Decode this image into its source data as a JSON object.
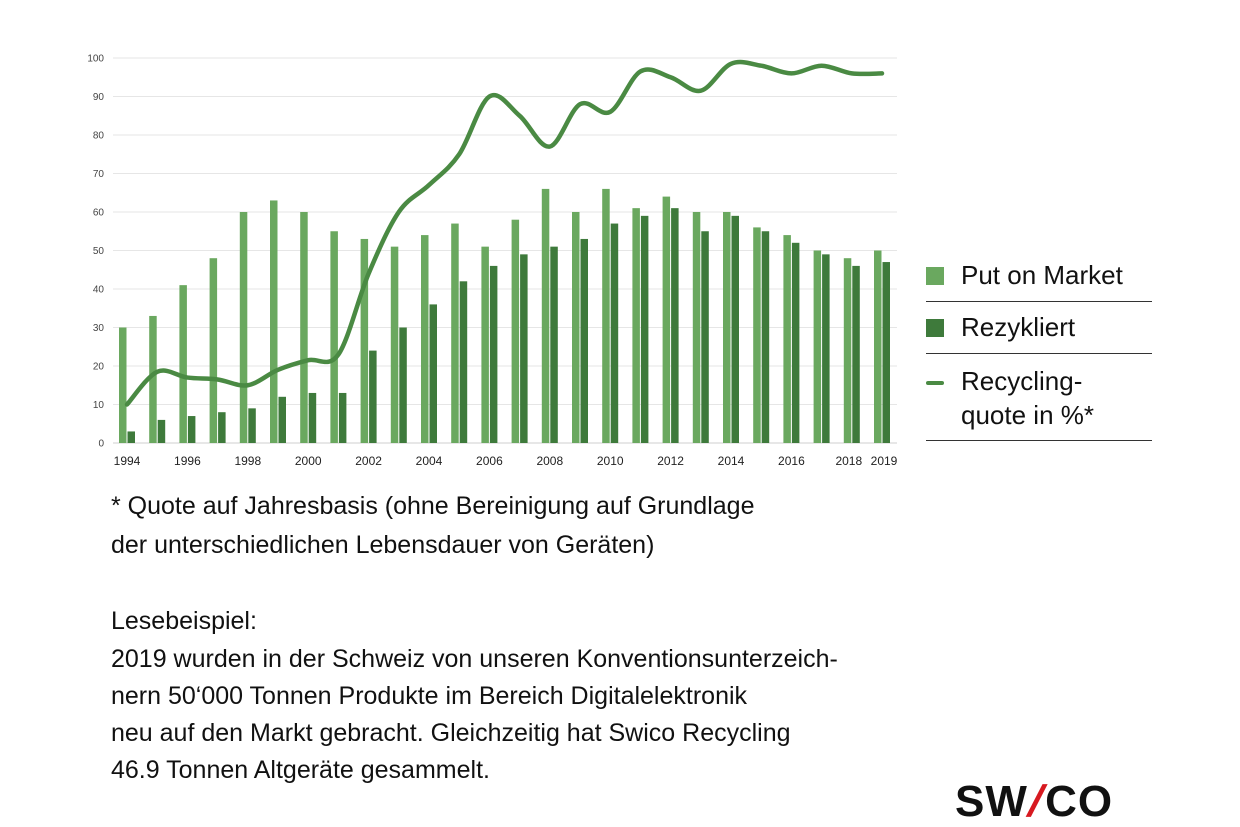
{
  "chart_data": {
    "type": "bar",
    "x": [
      1994,
      1995,
      1996,
      1997,
      1998,
      1999,
      2000,
      2001,
      2002,
      2003,
      2004,
      2005,
      2006,
      2007,
      2008,
      2009,
      2010,
      2011,
      2012,
      2013,
      2014,
      2015,
      2016,
      2017,
      2018,
      2019
    ],
    "x_tick_labels": [
      "1994",
      "1996",
      "1998",
      "2000",
      "2002",
      "2004",
      "2006",
      "2008",
      "2010",
      "2012",
      "2014",
      "2016",
      "2018",
      "2019"
    ],
    "y_ticks": [
      "0",
      "10",
      "20",
      "30",
      "40",
      "50",
      "60",
      "70",
      "80",
      "90",
      "100"
    ],
    "ylim": [
      0,
      100
    ],
    "grid": "horizontal",
    "series": [
      {
        "name": "Put on Market",
        "type": "bar",
        "color": "#6aa85f",
        "values": [
          30,
          33,
          41,
          48,
          60,
          63,
          60,
          55,
          53,
          51,
          54,
          57,
          51,
          58,
          66,
          60,
          66,
          61,
          64,
          60,
          60,
          56,
          54,
          50,
          48,
          50
        ]
      },
      {
        "name": "Rezykliert",
        "type": "bar",
        "color": "#3e7a3b",
        "values": [
          3,
          6,
          7,
          8,
          9,
          12,
          13,
          13,
          24,
          30,
          36,
          42,
          46,
          49,
          51,
          53,
          57,
          59,
          61,
          55,
          59,
          55,
          52,
          49,
          46,
          47
        ]
      },
      {
        "name": "Recycling-quote in %*",
        "type": "line",
        "color": "#4a8a43",
        "values": [
          10,
          18.5,
          17,
          16.5,
          15,
          19,
          21.5,
          23,
          44,
          60,
          67,
          75,
          90,
          85,
          77,
          88,
          86,
          96.5,
          95,
          91.5,
          98.5,
          98,
          96,
          98,
          96,
          96
        ]
      }
    ],
    "legend_position": "right"
  },
  "legend": {
    "put_on_market": "Put on Market",
    "rezykliert": "Rezykliert",
    "quote_line1": "Recycling-",
    "quote_line2": "quote  in %*"
  },
  "footnote": {
    "line1": "* Quote auf Jahresbasis (ohne Bereinigung auf Grundlage",
    "line2": "der unterschiedlichen Lebensdauer von Geräten)"
  },
  "example": {
    "title": "Lesebeispiel:",
    "lines": [
      "2019 wurden in der Schweiz von unseren Konventionsunterzeich-",
      "nern 50‘000 Tonnen Produkte im Bereich Digitalelektronik",
      "neu auf den Markt gebracht. Gleichzeitig hat Swico Recycling",
      "46.9 Tonnen Altgeräte gesammelt."
    ]
  },
  "logo": {
    "part1": "SW",
    "slash": "/",
    "part2": "CO"
  }
}
